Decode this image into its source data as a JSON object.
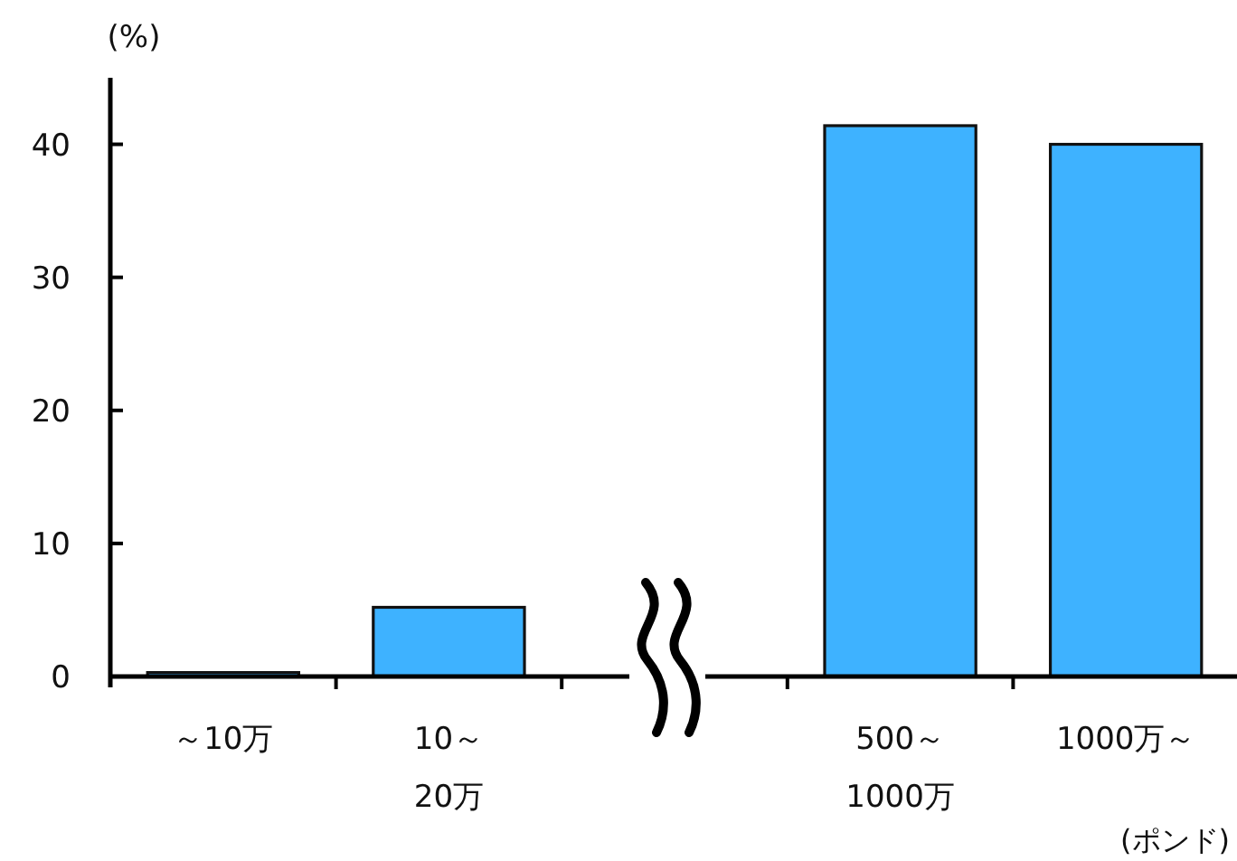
{
  "chart_data": {
    "type": "bar",
    "ylabel": "(%)",
    "xlabel": "(ポンド)",
    "categories": [
      "～10万",
      "10～\n20万",
      null,
      "500～\n1000万",
      "1000万～"
    ],
    "values": [
      0.3,
      5.2,
      null,
      41.4,
      40.0
    ],
    "color": "#3eb2ff",
    "ylim": [
      0,
      45
    ],
    "yticks": [
      0,
      10,
      20,
      30,
      40
    ],
    "grid": false
  }
}
